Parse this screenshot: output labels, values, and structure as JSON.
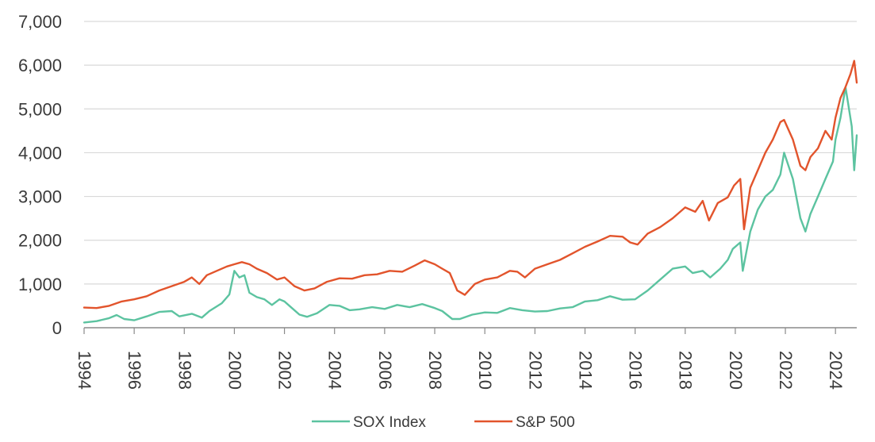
{
  "chart_data": {
    "type": "line",
    "title": "",
    "xlabel": "",
    "ylabel": "",
    "xlim": [
      1994,
      2024.85
    ],
    "ylim": [
      0,
      7000
    ],
    "grid": "horizontal",
    "legend_position": "bottom-center",
    "y_ticks": [
      {
        "value": 0,
        "label": "0"
      },
      {
        "value": 1000,
        "label": "1,000"
      },
      {
        "value": 2000,
        "label": "2,000"
      },
      {
        "value": 3000,
        "label": "3,000"
      },
      {
        "value": 4000,
        "label": "4,000"
      },
      {
        "value": 5000,
        "label": "5,000"
      },
      {
        "value": 6000,
        "label": "6,000"
      },
      {
        "value": 7000,
        "label": "7,000"
      }
    ],
    "x_ticks": [
      {
        "value": 1994,
        "label": "1994"
      },
      {
        "value": 1996,
        "label": "1996"
      },
      {
        "value": 1998,
        "label": "1998"
      },
      {
        "value": 2000,
        "label": "2000"
      },
      {
        "value": 2002,
        "label": "2002"
      },
      {
        "value": 2004,
        "label": "2004"
      },
      {
        "value": 2006,
        "label": "2006"
      },
      {
        "value": 2008,
        "label": "2008"
      },
      {
        "value": 2010,
        "label": "2010"
      },
      {
        "value": 2012,
        "label": "2012"
      },
      {
        "value": 2014,
        "label": "2014"
      },
      {
        "value": 2016,
        "label": "2016"
      },
      {
        "value": 2018,
        "label": "2018"
      },
      {
        "value": 2020,
        "label": "2020"
      },
      {
        "value": 2022,
        "label": "2022"
      },
      {
        "value": 2024,
        "label": "2024"
      }
    ],
    "series": [
      {
        "name": "SOX Index",
        "color": "#5cc3a0",
        "x": [
          1994.0,
          1994.5,
          1995.0,
          1995.3,
          1995.6,
          1996.0,
          1996.5,
          1997.0,
          1997.5,
          1997.8,
          1998.3,
          1998.7,
          1999.0,
          1999.5,
          1999.8,
          2000.0,
          2000.2,
          2000.4,
          2000.6,
          2000.9,
          2001.2,
          2001.5,
          2001.8,
          2002.0,
          2002.3,
          2002.6,
          2002.9,
          2003.3,
          2003.8,
          2004.2,
          2004.6,
          2005.0,
          2005.5,
          2006.0,
          2006.5,
          2007.0,
          2007.5,
          2008.0,
          2008.3,
          2008.7,
          2009.0,
          2009.5,
          2010.0,
          2010.5,
          2011.0,
          2011.5,
          2012.0,
          2012.5,
          2013.0,
          2013.5,
          2014.0,
          2014.5,
          2015.0,
          2015.5,
          2016.0,
          2016.5,
          2017.0,
          2017.5,
          2018.0,
          2018.3,
          2018.7,
          2019.0,
          2019.4,
          2019.7,
          2019.9,
          2020.2,
          2020.3,
          2020.6,
          2020.9,
          2021.2,
          2021.5,
          2021.8,
          2021.95,
          2022.3,
          2022.6,
          2022.8,
          2023.0,
          2023.3,
          2023.6,
          2023.9,
          2024.0,
          2024.2,
          2024.4,
          2024.5,
          2024.65,
          2024.75,
          2024.85
        ],
        "values": [
          120,
          150,
          220,
          290,
          200,
          170,
          260,
          360,
          380,
          260,
          320,
          230,
          380,
          560,
          760,
          1300,
          1150,
          1200,
          800,
          700,
          650,
          520,
          650,
          600,
          450,
          300,
          250,
          330,
          520,
          500,
          400,
          420,
          470,
          430,
          520,
          470,
          540,
          450,
          380,
          200,
          200,
          300,
          350,
          340,
          450,
          400,
          370,
          380,
          440,
          470,
          600,
          630,
          720,
          640,
          650,
          850,
          1100,
          1350,
          1400,
          1250,
          1300,
          1150,
          1350,
          1550,
          1800,
          1950,
          1300,
          2200,
          2700,
          3000,
          3150,
          3500,
          4000,
          3400,
          2500,
          2200,
          2600,
          3000,
          3400,
          3800,
          4300,
          4800,
          5500,
          5150,
          4600,
          3600,
          4400
        ]
      },
      {
        "name": "S&P 500",
        "color": "#e2542c",
        "x": [
          1994.0,
          1994.5,
          1995.0,
          1995.5,
          1996.0,
          1996.5,
          1997.0,
          1997.5,
          1998.0,
          1998.3,
          1998.6,
          1998.9,
          1999.3,
          1999.7,
          2000.0,
          2000.3,
          2000.6,
          2000.9,
          2001.3,
          2001.7,
          2002.0,
          2002.4,
          2002.8,
          2003.2,
          2003.7,
          2004.2,
          2004.7,
          2005.2,
          2005.7,
          2006.2,
          2006.7,
          2007.2,
          2007.6,
          2008.0,
          2008.3,
          2008.6,
          2008.9,
          2009.2,
          2009.6,
          2010.0,
          2010.5,
          2011.0,
          2011.3,
          2011.6,
          2012.0,
          2012.5,
          2013.0,
          2013.5,
          2014.0,
          2014.5,
          2015.0,
          2015.5,
          2015.8,
          2016.1,
          2016.5,
          2017.0,
          2017.5,
          2018.0,
          2018.4,
          2018.7,
          2018.95,
          2019.3,
          2019.7,
          2019.95,
          2020.2,
          2020.35,
          2020.6,
          2020.9,
          2021.2,
          2021.5,
          2021.8,
          2021.95,
          2022.3,
          2022.6,
          2022.8,
          2023.0,
          2023.3,
          2023.6,
          2023.85,
          2024.0,
          2024.2,
          2024.4,
          2024.6,
          2024.75,
          2024.85
        ],
        "values": [
          460,
          450,
          500,
          600,
          650,
          720,
          850,
          950,
          1050,
          1150,
          1000,
          1200,
          1300,
          1400,
          1450,
          1500,
          1450,
          1350,
          1250,
          1100,
          1150,
          950,
          850,
          900,
          1050,
          1130,
          1120,
          1200,
          1220,
          1300,
          1280,
          1420,
          1540,
          1450,
          1350,
          1250,
          850,
          750,
          1000,
          1100,
          1150,
          1300,
          1280,
          1150,
          1350,
          1450,
          1550,
          1700,
          1850,
          1970,
          2100,
          2080,
          1950,
          1900,
          2150,
          2300,
          2500,
          2750,
          2650,
          2900,
          2450,
          2850,
          2980,
          3250,
          3400,
          2250,
          3200,
          3600,
          4000,
          4300,
          4700,
          4750,
          4300,
          3700,
          3600,
          3900,
          4100,
          4500,
          4300,
          4800,
          5250,
          5500,
          5800,
          6100,
          5600
        ]
      }
    ]
  }
}
